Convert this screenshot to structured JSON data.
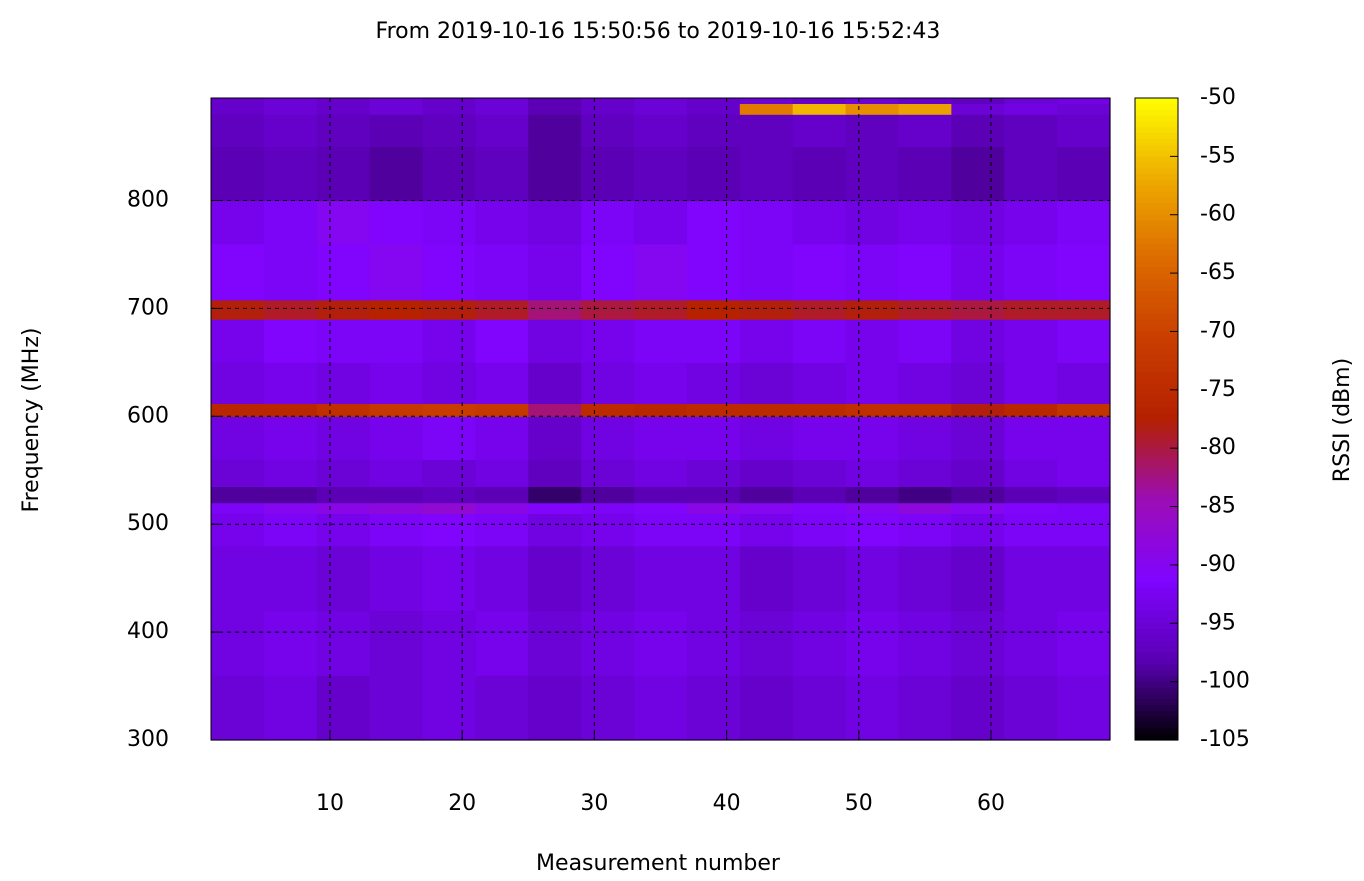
{
  "chart_data": {
    "type": "heatmap",
    "title": "From 2019-10-16 15:50:56 to 2019-10-16 15:52:43",
    "xlabel": "Measurement number",
    "ylabel": "Frequency (MHz)",
    "colorbar_label": "RSSI (dBm)",
    "x_bins": [
      1,
      5,
      9,
      13,
      17,
      21,
      25,
      29,
      33,
      37,
      41,
      45,
      49,
      53,
      57,
      61,
      65,
      69
    ],
    "y_bins": [
      300,
      360,
      420,
      480,
      510,
      520,
      535,
      560,
      600,
      612,
      650,
      690,
      708,
      760,
      800,
      850,
      880,
      890,
      895
    ],
    "values": [
      [
        -95,
        -94,
        -96,
        -95,
        -94,
        -95,
        -96,
        -95,
        -94,
        -95,
        -96,
        -95,
        -94,
        -95,
        -96,
        -95,
        -94
      ],
      [
        -94,
        -93,
        -94,
        -95,
        -94,
        -93,
        -95,
        -94,
        -93,
        -94,
        -95,
        -94,
        -93,
        -94,
        -95,
        -94,
        -93
      ],
      [
        -94,
        -94,
        -95,
        -94,
        -93,
        -94,
        -96,
        -95,
        -94,
        -94,
        -96,
        -95,
        -94,
        -95,
        -96,
        -94,
        -94
      ],
      [
        -93,
        -92,
        -93,
        -92,
        -91,
        -92,
        -94,
        -93,
        -92,
        -92,
        -93,
        -92,
        -91,
        -92,
        -93,
        -92,
        -92
      ],
      [
        -92,
        -90,
        -89,
        -88,
        -87,
        -89,
        -91,
        -92,
        -91,
        -89,
        -90,
        -91,
        -90,
        -88,
        -90,
        -91,
        -92
      ],
      [
        -99,
        -99,
        -98,
        -98,
        -97,
        -98,
        -101,
        -99,
        -98,
        -98,
        -99,
        -98,
        -99,
        -100,
        -99,
        -98,
        -97
      ],
      [
        -95,
        -94,
        -95,
        -94,
        -95,
        -94,
        -97,
        -95,
        -94,
        -95,
        -96,
        -95,
        -94,
        -95,
        -96,
        -94,
        -93
      ],
      [
        -94,
        -93,
        -94,
        -93,
        -92,
        -93,
        -96,
        -94,
        -93,
        -93,
        -94,
        -93,
        -93,
        -94,
        -95,
        -93,
        -93
      ],
      [
        -76,
        -76,
        -74,
        -72,
        -71,
        -72,
        -82,
        -75,
        -76,
        -75,
        -75,
        -75,
        -74,
        -74,
        -78,
        -76,
        -73
      ],
      [
        -94,
        -93,
        -94,
        -93,
        -94,
        -93,
        -96,
        -94,
        -93,
        -94,
        -95,
        -94,
        -93,
        -94,
        -95,
        -93,
        -94
      ],
      [
        -93,
        -91,
        -92,
        -92,
        -93,
        -91,
        -94,
        -93,
        -92,
        -92,
        -93,
        -92,
        -93,
        -92,
        -94,
        -93,
        -92
      ],
      [
        -78,
        -79,
        -78,
        -77,
        -78,
        -79,
        -82,
        -80,
        -79,
        -77,
        -78,
        -79,
        -78,
        -79,
        -80,
        -79,
        -79
      ],
      [
        -91,
        -92,
        -91,
        -90,
        -91,
        -92,
        -93,
        -91,
        -90,
        -91,
        -92,
        -91,
        -92,
        -91,
        -93,
        -92,
        -91
      ],
      [
        -93,
        -92,
        -90,
        -91,
        -92,
        -93,
        -94,
        -92,
        -93,
        -91,
        -92,
        -93,
        -94,
        -93,
        -94,
        -93,
        -92
      ],
      [
        -98,
        -97,
        -98,
        -99,
        -98,
        -97,
        -99,
        -98,
        -97,
        -98,
        -97,
        -98,
        -97,
        -98,
        -99,
        -97,
        -98
      ],
      [
        -97,
        -96,
        -97,
        -98,
        -97,
        -96,
        -99,
        -97,
        -96,
        -97,
        -97,
        -96,
        -97,
        -96,
        -98,
        -97,
        -96
      ],
      [
        -96,
        -95,
        -96,
        -95,
        -96,
        -95,
        -98,
        -96,
        -95,
        -96,
        -62,
        -56,
        -60,
        -58,
        -95,
        -94,
        -95
      ],
      [
        -96,
        -95,
        -96,
        -95,
        -96,
        -95,
        -98,
        -96,
        -95,
        -96,
        -95,
        -96,
        -95,
        -96,
        -97,
        -95,
        -94
      ]
    ],
    "xlim": [
      1,
      69
    ],
    "ylim": [
      300,
      895
    ],
    "xticks": [
      10,
      20,
      30,
      40,
      50,
      60
    ],
    "yticks": [
      300,
      400,
      500,
      600,
      700,
      800
    ],
    "clim": [
      -105,
      -50
    ],
    "cticks": [
      -105,
      -100,
      -95,
      -90,
      -85,
      -80,
      -75,
      -70,
      -65,
      -60,
      -55,
      -50
    ],
    "colormap": [
      "#000000",
      "#5a00b4",
      "#8004ff",
      "#9c0db4",
      "#b42000",
      "#c93e00",
      "#dd6b00",
      "#eeab00",
      "#ffff00"
    ],
    "grid": true
  }
}
